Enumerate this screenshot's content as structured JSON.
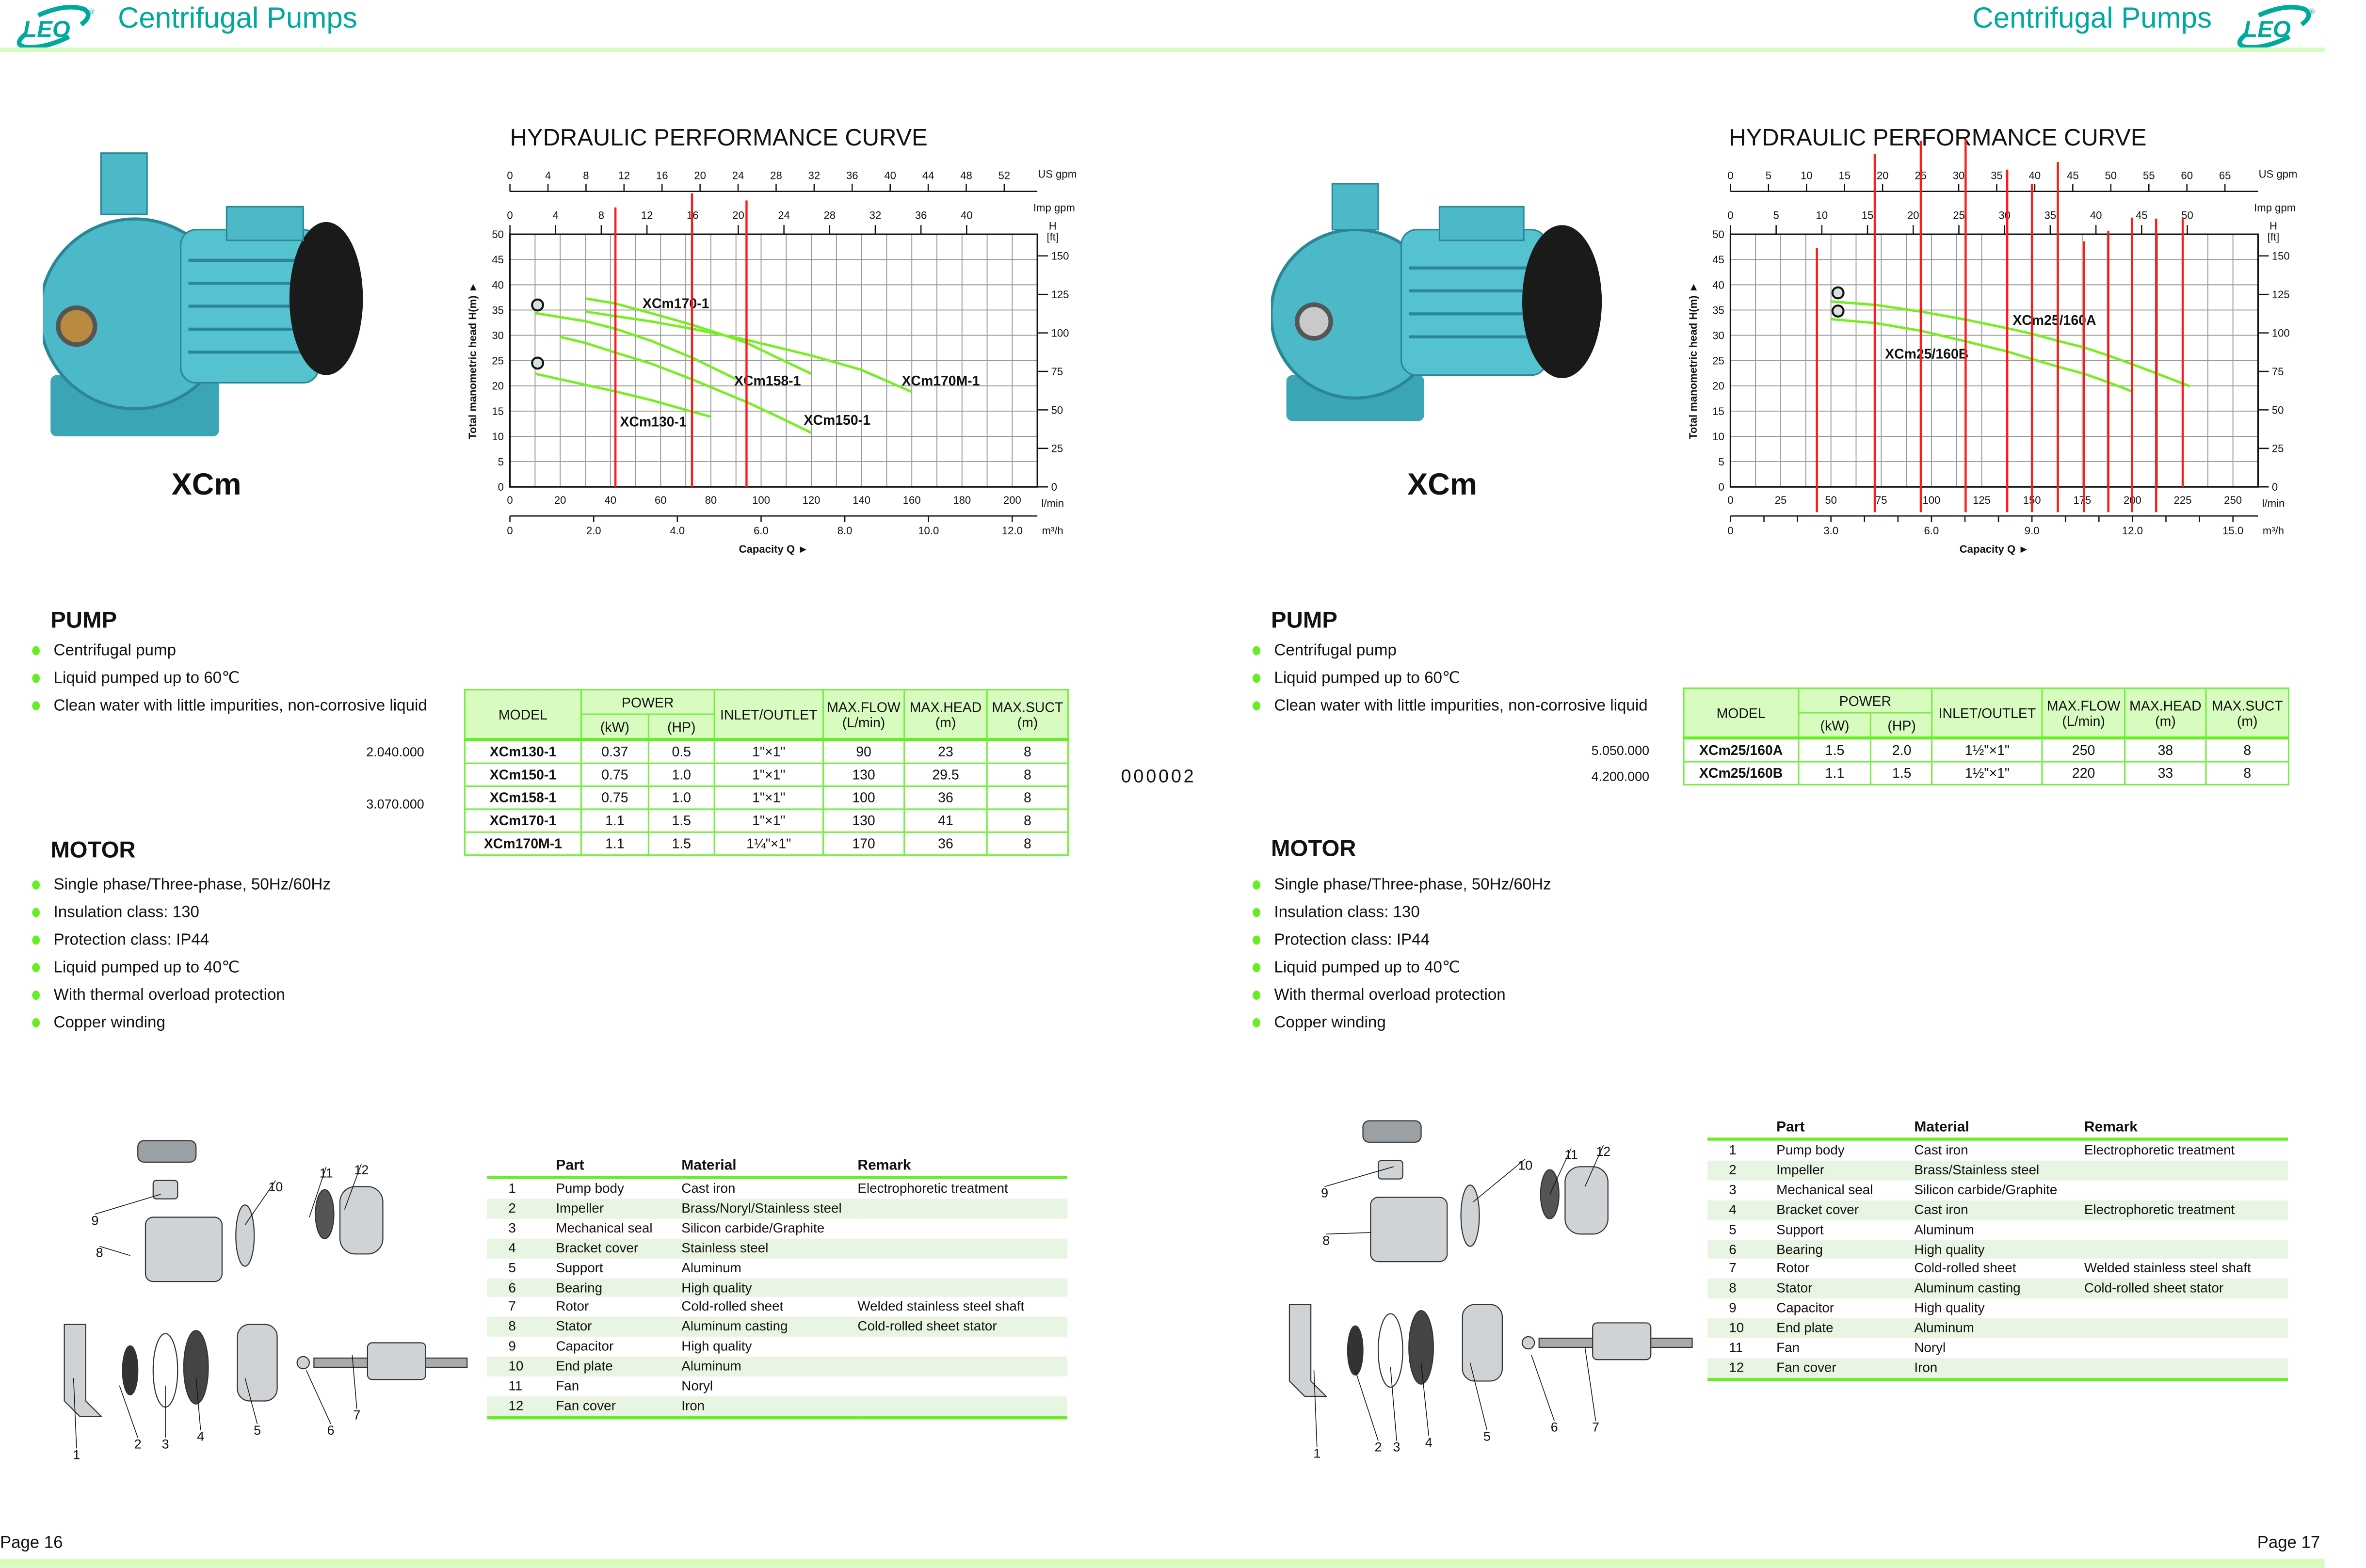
{
  "header": {
    "brand": "LEO",
    "title_left": "Centrifugal Pumps",
    "title_right": "Centrifugal Pumps"
  },
  "footer": {
    "page_left": "Page 16",
    "page_right": "Page 17"
  },
  "colors": {
    "brand_teal": "#00a99d",
    "accent_green": "#66ee22",
    "header_fill": "#d8fcc0",
    "curve_green": "#77ee22",
    "marker_red": "#ff1a1a"
  },
  "left": {
    "model": "XCm",
    "pump_title": "PUMP",
    "pump_bullets": [
      "Centrifugal pump",
      "Liquid pumped up to 60℃",
      "Clean water with little impurities, non-corrosive liquid"
    ],
    "prices": [
      "2.040.000",
      "3.070.000"
    ],
    "motor_title": "MOTOR",
    "motor_bullets": [
      "Single phase/Three-phase, 50Hz/60Hz",
      "Insulation class: 130",
      "Protection class: IP44",
      "Liquid pumped up to 40℃",
      "With thermal overload protection",
      "Copper winding"
    ],
    "spec_table": {
      "headers": {
        "model": "MODEL",
        "power": "POWER",
        "kw": "(kW)",
        "hp": "(HP)",
        "inlet": "INLET/OUTLET",
        "flow": "MAX.FLOW",
        "flow_unit": "(L/min)",
        "head": "MAX.HEAD",
        "head_unit": "(m)",
        "suct": "MAX.SUCT",
        "suct_unit": "(m)"
      },
      "rows": [
        [
          "XCm130-1",
          "0.37",
          "0.5",
          "1\"×1\"",
          "90",
          "23",
          "8"
        ],
        [
          "XCm150-1",
          "0.75",
          "1.0",
          "1\"×1\"",
          "130",
          "29.5",
          "8"
        ],
        [
          "XCm158-1",
          "0.75",
          "1.0",
          "1\"×1\"",
          "100",
          "36",
          "8"
        ],
        [
          "XCm170-1",
          "1.1",
          "1.5",
          "1\"×1\"",
          "130",
          "41",
          "8"
        ],
        [
          "XCm170M-1",
          "1.1",
          "1.5",
          "1¼\"×1\"",
          "170",
          "36",
          "8"
        ]
      ]
    },
    "parts_table": {
      "headers": [
        "",
        "Part",
        "Material",
        "Remark"
      ],
      "rows": [
        [
          "1",
          "Pump body",
          "Cast iron",
          "Electrophoretic treatment"
        ],
        [
          "2",
          "Impeller",
          "Brass/Noryl/Stainless steel",
          ""
        ],
        [
          "3",
          "Mechanical seal",
          "Silicon carbide/Graphite",
          ""
        ],
        [
          "4",
          "Bracket cover",
          "Stainless steel",
          ""
        ],
        [
          "5",
          "Support",
          "Aluminum",
          ""
        ],
        [
          "6",
          "Bearing",
          "High quality",
          ""
        ],
        [
          "7",
          "Rotor",
          "Cold-rolled sheet",
          "Welded stainless steel shaft"
        ],
        [
          "8",
          "Stator",
          "Aluminum casting",
          "Cold-rolled sheet stator"
        ],
        [
          "9",
          "Capacitor",
          "High quality",
          ""
        ],
        [
          "10",
          "End plate",
          "Aluminum",
          ""
        ],
        [
          "11",
          "Fan",
          "Noryl",
          ""
        ],
        [
          "12",
          "Fan cover",
          "Iron",
          ""
        ]
      ]
    }
  },
  "center_code": "000002",
  "right": {
    "model": "XCm",
    "pump_title": "PUMP",
    "pump_bullets": [
      "Centrifugal pump",
      "Liquid pumped up to 60℃",
      "Clean water with little impurities, non-corrosive liquid"
    ],
    "prices": [
      "5.050.000",
      "4.200.000"
    ],
    "motor_title": "MOTOR",
    "motor_bullets": [
      "Single phase/Three-phase, 50Hz/60Hz",
      "Insulation class: 130",
      "Protection class: IP44",
      "Liquid pumped up to 40℃",
      "With thermal overload protection",
      "Copper winding"
    ],
    "spec_table": {
      "headers": {
        "model": "MODEL",
        "power": "POWER",
        "kw": "(kW)",
        "hp": "(HP)",
        "inlet": "INLET/OUTLET",
        "flow": "MAX.FLOW",
        "flow_unit": "(L/min)",
        "head": "MAX.HEAD",
        "head_unit": "(m)",
        "suct": "MAX.SUCT",
        "suct_unit": "(m)"
      },
      "rows": [
        [
          "XCm25/160A",
          "1.5",
          "2.0",
          "1½\"×1\"",
          "250",
          "38",
          "8"
        ],
        [
          "XCm25/160B",
          "1.1",
          "1.5",
          "1½\"×1\"",
          "220",
          "33",
          "8"
        ]
      ]
    },
    "parts_table": {
      "headers": [
        "",
        "Part",
        "Material",
        "Remark"
      ],
      "rows": [
        [
          "1",
          "Pump body",
          "Cast iron",
          "Electrophoretic treatment"
        ],
        [
          "2",
          "Impeller",
          "Brass/Stainless steel",
          ""
        ],
        [
          "3",
          "Mechanical seal",
          "Silicon carbide/Graphite",
          ""
        ],
        [
          "4",
          "Bracket cover",
          "Cast iron",
          "Electrophoretic treatment"
        ],
        [
          "5",
          "Support",
          "Aluminum",
          ""
        ],
        [
          "6",
          "Bearing",
          "High quality",
          ""
        ],
        [
          "7",
          "Rotor",
          "Cold-rolled sheet",
          "Welded stainless steel shaft"
        ],
        [
          "8",
          "Stator",
          "Aluminum casting",
          "Cold-rolled sheet stator"
        ],
        [
          "9",
          "Capacitor",
          "High quality",
          ""
        ],
        [
          "10",
          "End plate",
          "Aluminum",
          ""
        ],
        [
          "11",
          "Fan",
          "Noryl",
          ""
        ],
        [
          "12",
          "Fan cover",
          "Iron",
          ""
        ]
      ]
    }
  },
  "chart_data": [
    {
      "type": "line",
      "title": "HYDRAULIC PERFORMANCE CURVE",
      "xlabel": "Capacity Q ►",
      "ylabel": "Total manometric head H(m) ►",
      "x_unit": "l/min",
      "y_unit": "",
      "y2_unit": "H [ft]",
      "xlim": [
        0,
        210
      ],
      "ylim": [
        0,
        50
      ],
      "x_ticks": [
        "0",
        "20",
        "40",
        "60",
        "80",
        "100",
        "120",
        "140",
        "160",
        "180",
        "200"
      ],
      "y_ticks": [
        "0",
        "5",
        "10",
        "15",
        "20",
        "25",
        "30",
        "35",
        "40",
        "45",
        "50"
      ],
      "y2_ticks": [
        "0",
        "25",
        "50",
        "75",
        "100",
        "125",
        "150"
      ],
      "us_gpm_label": "US gpm",
      "us_gpm_ticks": [
        "0",
        "4",
        "8",
        "12",
        "16",
        "20",
        "24",
        "28",
        "32",
        "36",
        "40",
        "44",
        "48",
        "52"
      ],
      "imp_gpm_label": "Imp gpm",
      "imp_gpm_ticks": [
        "0",
        "4",
        "8",
        "12",
        "16",
        "20",
        "24",
        "28",
        "32",
        "36",
        "40"
      ],
      "m3h_label": "m³/h",
      "m3h_ticks": [
        "0",
        "2.0",
        "4.0",
        "6.0",
        "8.0",
        "10.0",
        "12.0"
      ],
      "grid": true,
      "series": [
        {
          "name": "XCm170-1",
          "x": [
            30,
            41.9,
            56.8,
            72.4,
            86,
            94.2,
            107.2,
            120
          ],
          "y": [
            37.3,
            36.3,
            34.3,
            32.1,
            29.9,
            28.5,
            25.4,
            22.4
          ],
          "label_at": [
            52.8,
            36.3
          ]
        },
        {
          "name": "XCm170M-1",
          "x": [
            30,
            41.9,
            56.8,
            72.4,
            94.2,
            120,
            139.7,
            160
          ],
          "y": [
            34.7,
            33.8,
            32.7,
            31.3,
            29.1,
            26,
            23.2,
            18.8
          ],
          "label_at": [
            156,
            21
          ]
        },
        {
          "name": "XCm158-1",
          "x": [
            10,
            30,
            41.9,
            56.8,
            72.4,
            89.8
          ],
          "y": [
            34.4,
            32.8,
            31.3,
            28.8,
            25.6,
            21.4
          ],
          "label_at": [
            89.3,
            21
          ]
        },
        {
          "name": "XCm150-1",
          "x": [
            19.8,
            30,
            41.9,
            56.8,
            72.4,
            94.2,
            107.2,
            120
          ],
          "y": [
            29.7,
            28.5,
            26.6,
            24.3,
            21.3,
            16.8,
            13.8,
            10.7
          ],
          "label_at": [
            117,
            13.2
          ]
        },
        {
          "name": "XCm130-1",
          "x": [
            10,
            30,
            41.9,
            56.8,
            72.4,
            80
          ],
          "y": [
            22.4,
            20.2,
            18.9,
            17.1,
            14.9,
            13.9
          ],
          "label_at": [
            43.8,
            12.9
          ]
        }
      ],
      "circle_markers": [
        [
          11,
          36
        ],
        [
          11,
          24.5
        ]
      ],
      "red_markers": [
        {
          "x": 42,
          "from": 0,
          "to": 55.3
        },
        {
          "x": 72.5,
          "from": 0,
          "to": 58.1
        },
        {
          "x": 94.2,
          "from": 0,
          "to": 56.7
        }
      ]
    },
    {
      "type": "line",
      "title": "HYDRAULIC PERFORMANCE CURVE",
      "xlabel": "Capacity Q ►",
      "ylabel": "Total manometric head H(m) ►",
      "x_unit": "l/min",
      "y_unit": "",
      "y2_unit": "H [ft]",
      "xlim": [
        0,
        262.5
      ],
      "ylim": [
        0,
        50
      ],
      "x_ticks": [
        "0",
        "25",
        "50",
        "75",
        "100",
        "125",
        "150",
        "175",
        "200",
        "225",
        "250"
      ],
      "y_ticks": [
        "0",
        "5",
        "10",
        "15",
        "20",
        "25",
        "30",
        "35",
        "40",
        "45",
        "50"
      ],
      "y2_ticks": [
        "0",
        "25",
        "50",
        "75",
        "100",
        "125",
        "150"
      ],
      "us_gpm_label": "US gpm",
      "us_gpm_ticks": [
        "0",
        "5",
        "10",
        "15",
        "20",
        "25",
        "30",
        "35",
        "40",
        "45",
        "50",
        "55",
        "60",
        "65"
      ],
      "imp_gpm_label": "Imp gpm",
      "imp_gpm_ticks": [
        "0",
        "5",
        "10",
        "15",
        "20",
        "25",
        "30",
        "35",
        "40",
        "45",
        "50"
      ],
      "m3h_label": "m³/h",
      "m3h_ticks": [
        "0",
        "3.0",
        "6.0",
        "9.0",
        "12.0",
        "15.0"
      ],
      "grid": true,
      "series": [
        {
          "name": "XCm25/160A",
          "x": [
            50.1,
            72.4,
            94.7,
            117,
            137.7,
            150,
            162.9,
            175.9,
            188,
            199.8,
            211.8,
            228.6
          ],
          "y": [
            36.7,
            36,
            34.7,
            33.1,
            31.4,
            30.3,
            28.9,
            27.6,
            26,
            24.3,
            22.5,
            19.9
          ],
          "label_at": [
            140.4,
            33
          ]
        },
        {
          "name": "XCm25/160B",
          "x": [
            50.1,
            72.4,
            94.7,
            117,
            137.7,
            150,
            162.9,
            175.9,
            188,
            199.8
          ],
          "y": [
            33.2,
            32.4,
            30.9,
            28.8,
            26.8,
            25.3,
            23.8,
            22.4,
            20.7,
            18.9
          ],
          "label_at": [
            76.9,
            26.3
          ]
        }
      ],
      "circle_markers": [
        [
          53.5,
          38.4
        ],
        [
          53.5,
          34.8
        ]
      ],
      "red_markers": [
        {
          "x": 43,
          "from": -5,
          "to": 47.3
        },
        {
          "x": 71.8,
          "from": -5,
          "to": 65.9
        },
        {
          "x": 94.7,
          "from": -5,
          "to": 68.5
        },
        {
          "x": 117,
          "from": -5,
          "to": 68.9
        },
        {
          "x": 137.7,
          "from": -5,
          "to": 62.8
        },
        {
          "x": 150,
          "from": -5,
          "to": 60
        },
        {
          "x": 162.9,
          "from": -5,
          "to": 64.3
        },
        {
          "x": 175.9,
          "from": -5,
          "to": 48.6
        },
        {
          "x": 188,
          "from": -5,
          "to": 50.7
        },
        {
          "x": 199.8,
          "from": -5,
          "to": 53.3
        },
        {
          "x": 211.8,
          "from": -5,
          "to": 53.1
        },
        {
          "x": 225,
          "from": 0,
          "to": 53.1
        }
      ]
    }
  ]
}
